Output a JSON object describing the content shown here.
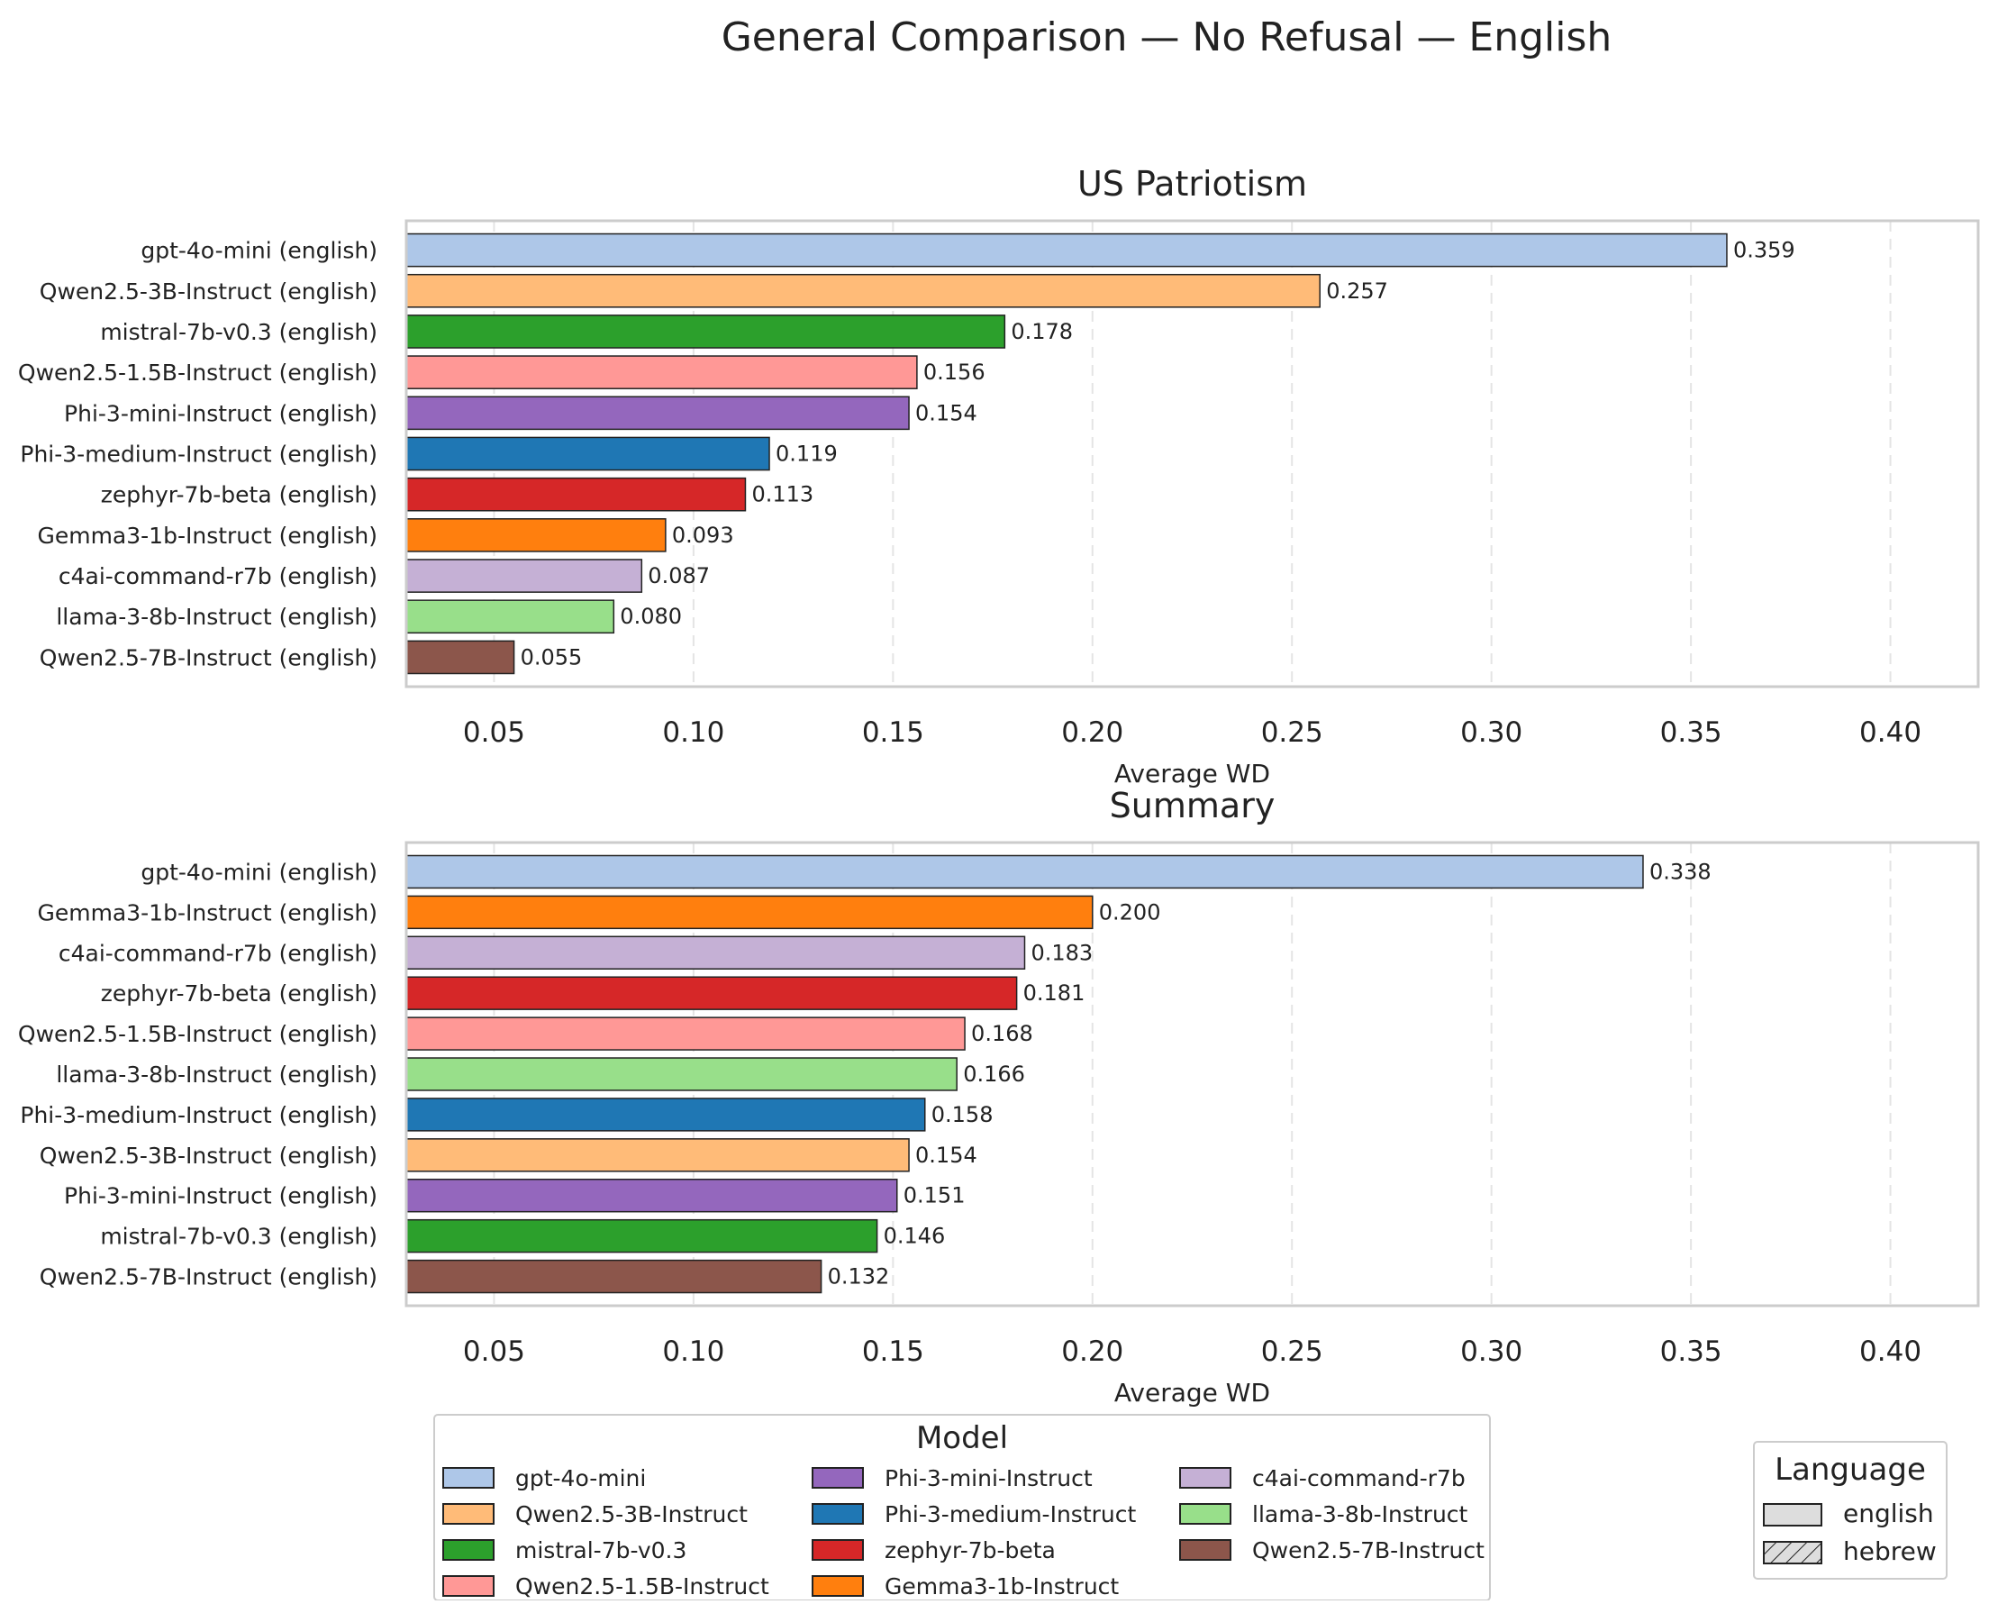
{
  "figure_title": "General Comparison — No Refusal — English",
  "chart_data": [
    {
      "type": "bar",
      "orientation": "horizontal",
      "title": "US Patriotism",
      "xlabel": "Average WD",
      "ylabel": "",
      "xlim": [
        0.028,
        0.422
      ],
      "xticks": [
        0.05,
        0.1,
        0.15,
        0.2,
        0.25,
        0.3,
        0.35,
        0.4
      ],
      "xtick_labels": [
        "0.05",
        "0.10",
        "0.15",
        "0.20",
        "0.25",
        "0.30",
        "0.35",
        "0.40"
      ],
      "grid": "x-dashed",
      "categories": [
        "gpt-4o-mini (english)",
        "Qwen2.5-3B-Instruct (english)",
        "mistral-7b-v0.3 (english)",
        "Qwen2.5-1.5B-Instruct (english)",
        "Phi-3-mini-Instruct (english)",
        "Phi-3-medium-Instruct (english)",
        "zephyr-7b-beta (english)",
        "Gemma3-1b-Instruct (english)",
        "c4ai-command-r7b (english)",
        "llama-3-8b-Instruct (english)",
        "Qwen2.5-7B-Instruct (english)"
      ],
      "values": [
        0.359,
        0.257,
        0.178,
        0.156,
        0.154,
        0.119,
        0.113,
        0.093,
        0.087,
        0.08,
        0.055
      ],
      "value_labels": [
        "0.359",
        "0.257",
        "0.178",
        "0.156",
        "0.154",
        "0.119",
        "0.113",
        "0.093",
        "0.087",
        "0.080",
        "0.055"
      ],
      "colors": [
        "#aec7e8",
        "#ffbb78",
        "#2ca02c",
        "#ff9896",
        "#9467bd",
        "#1f77b4",
        "#d62728",
        "#ff7f0e",
        "#c5b0d5",
        "#98df8a",
        "#8c564b"
      ]
    },
    {
      "type": "bar",
      "orientation": "horizontal",
      "title": "Summary",
      "xlabel": "Average WD",
      "ylabel": "",
      "xlim": [
        0.028,
        0.422
      ],
      "xticks": [
        0.05,
        0.1,
        0.15,
        0.2,
        0.25,
        0.3,
        0.35,
        0.4
      ],
      "xtick_labels": [
        "0.05",
        "0.10",
        "0.15",
        "0.20",
        "0.25",
        "0.30",
        "0.35",
        "0.40"
      ],
      "grid": "x-dashed",
      "categories": [
        "gpt-4o-mini (english)",
        "Gemma3-1b-Instruct (english)",
        "c4ai-command-r7b (english)",
        "zephyr-7b-beta (english)",
        "Qwen2.5-1.5B-Instruct (english)",
        "llama-3-8b-Instruct (english)",
        "Phi-3-medium-Instruct (english)",
        "Qwen2.5-3B-Instruct (english)",
        "Phi-3-mini-Instruct (english)",
        "mistral-7b-v0.3 (english)",
        "Qwen2.5-7B-Instruct (english)"
      ],
      "values": [
        0.338,
        0.2,
        0.183,
        0.181,
        0.168,
        0.166,
        0.158,
        0.154,
        0.151,
        0.146,
        0.132
      ],
      "value_labels": [
        "0.338",
        "0.200",
        "0.183",
        "0.181",
        "0.168",
        "0.166",
        "0.158",
        "0.154",
        "0.151",
        "0.146",
        "0.132"
      ],
      "colors": [
        "#aec7e8",
        "#ff7f0e",
        "#c5b0d5",
        "#d62728",
        "#ff9896",
        "#98df8a",
        "#1f77b4",
        "#ffbb78",
        "#9467bd",
        "#2ca02c",
        "#8c564b"
      ]
    }
  ],
  "legend_model": {
    "title": "Model",
    "placement": "bottom-center",
    "columns": 3,
    "items": [
      {
        "label": "gpt-4o-mini",
        "color": "#aec7e8"
      },
      {
        "label": "Qwen2.5-3B-Instruct",
        "color": "#ffbb78"
      },
      {
        "label": "mistral-7b-v0.3",
        "color": "#2ca02c"
      },
      {
        "label": "Qwen2.5-1.5B-Instruct",
        "color": "#ff9896"
      },
      {
        "label": "Phi-3-mini-Instruct",
        "color": "#9467bd"
      },
      {
        "label": "Phi-3-medium-Instruct",
        "color": "#1f77b4"
      },
      {
        "label": "zephyr-7b-beta",
        "color": "#d62728"
      },
      {
        "label": "Gemma3-1b-Instruct",
        "color": "#ff7f0e"
      },
      {
        "label": "c4ai-command-r7b",
        "color": "#c5b0d5"
      },
      {
        "label": "llama-3-8b-Instruct",
        "color": "#98df8a"
      },
      {
        "label": "Qwen2.5-7B-Instruct",
        "color": "#8c564b"
      }
    ]
  },
  "legend_language": {
    "title": "Language",
    "placement": "bottom-right",
    "items": [
      {
        "label": "english",
        "pattern": "solid",
        "color": "#dddddd"
      },
      {
        "label": "hebrew",
        "pattern": "hatch",
        "color": "#dddddd"
      }
    ]
  }
}
